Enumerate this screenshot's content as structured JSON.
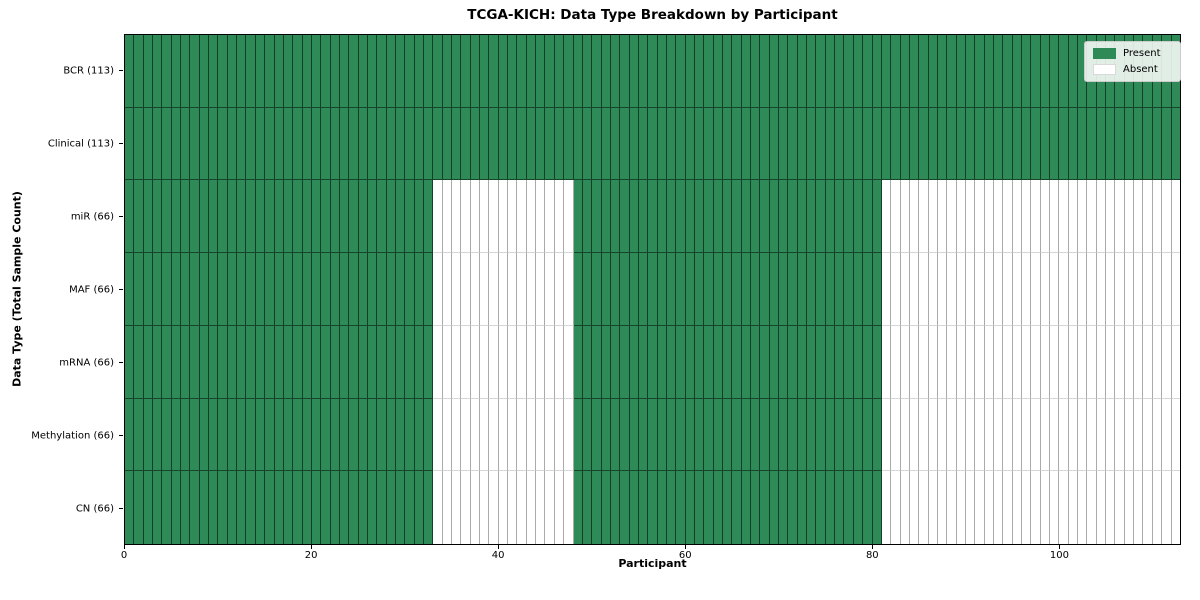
{
  "chart_data": {
    "type": "heatmap",
    "title": "TCGA-KICH: Data Type Breakdown by Participant",
    "xlabel": "Participant",
    "ylabel": "Data Type (Total Sample Count)",
    "n_participants": 113,
    "x_ticks": [
      0,
      20,
      40,
      60,
      80,
      100
    ],
    "colors": {
      "present": "#2e8b57",
      "absent": "#ffffff"
    },
    "legend": [
      {
        "label": "Present",
        "color": "#2e8b57"
      },
      {
        "label": "Absent",
        "color": "#ffffff"
      }
    ],
    "rows": [
      {
        "label": "BCR (113)",
        "total_samples": 113,
        "present_ranges": [
          [
            0,
            113
          ]
        ]
      },
      {
        "label": "Clinical (113)",
        "total_samples": 113,
        "present_ranges": [
          [
            0,
            113
          ]
        ]
      },
      {
        "label": "miR (66)",
        "total_samples": 66,
        "present_ranges": [
          [
            0,
            33
          ],
          [
            48,
            81
          ]
        ]
      },
      {
        "label": "MAF (66)",
        "total_samples": 66,
        "present_ranges": [
          [
            0,
            33
          ],
          [
            48,
            81
          ]
        ]
      },
      {
        "label": "mRNA (66)",
        "total_samples": 66,
        "present_ranges": [
          [
            0,
            33
          ],
          [
            48,
            81
          ]
        ]
      },
      {
        "label": "Methylation (66)",
        "total_samples": 66,
        "present_ranges": [
          [
            0,
            33
          ],
          [
            48,
            81
          ]
        ]
      },
      {
        "label": "CN (66)",
        "total_samples": 66,
        "present_ranges": [
          [
            0,
            33
          ],
          [
            48,
            81
          ]
        ]
      }
    ]
  }
}
